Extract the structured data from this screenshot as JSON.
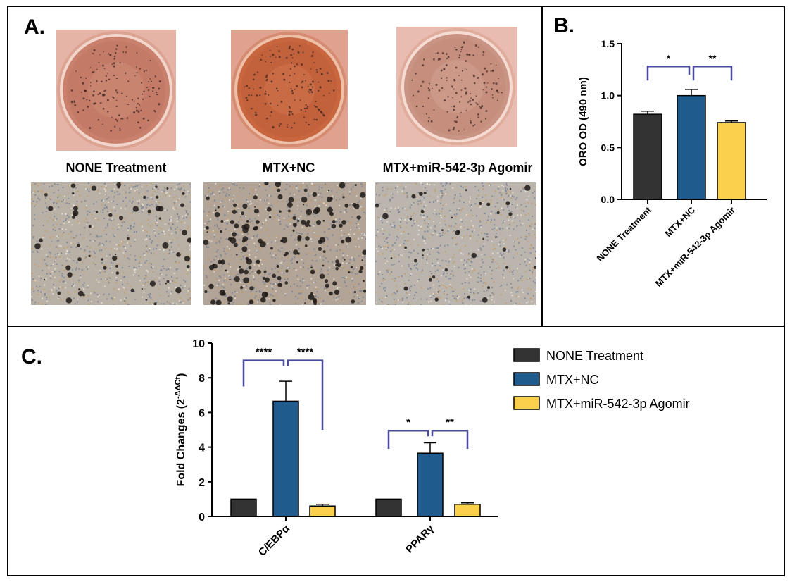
{
  "panels": {
    "a": {
      "letter": "A.",
      "labels": [
        "NONE Treatment",
        "MTX+NC",
        "MTX+miR-542-3p Agomir"
      ]
    },
    "b": {
      "letter": "B."
    },
    "c": {
      "letter": "C."
    }
  },
  "colors": {
    "none": "#333333",
    "nc": "#1f5b8c",
    "agomir": "#fbd04c",
    "bracket": "#4a4a9c",
    "plate_rim": "#e9b3a0",
    "well_fill": "#c8765c",
    "micro_bg": "#b8b0a4"
  },
  "chart_data": [
    {
      "type": "bar",
      "panel": "B",
      "categories": [
        "NONE Treatment",
        "MTX+NC",
        "MTX+miR-542-3p Agomir"
      ],
      "values": [
        0.82,
        1.0,
        0.74
      ],
      "errors": [
        0.03,
        0.06,
        0.015
      ],
      "ylabel": "ORO OD (490 nm)",
      "ylim": [
        0,
        1.5
      ],
      "yticks": [
        "0.0",
        "0.5",
        "1.0",
        "1.5"
      ],
      "grid": false,
      "significance": [
        {
          "from": 0,
          "to": 1,
          "label": "*"
        },
        {
          "from": 1,
          "to": 2,
          "label": "**"
        }
      ]
    },
    {
      "type": "bar",
      "panel": "C",
      "categories": [
        "C/EBPα",
        "PPARγ"
      ],
      "series": [
        {
          "name": "NONE Treatment",
          "values": [
            1.0,
            1.0
          ],
          "errors": [
            0,
            0
          ]
        },
        {
          "name": "MTX+NC",
          "values": [
            6.65,
            3.65
          ],
          "errors": [
            1.15,
            0.6
          ]
        },
        {
          "name": "MTX+miR-542-3p Agomir",
          "values": [
            0.6,
            0.7
          ],
          "errors": [
            0.1,
            0.08
          ]
        }
      ],
      "ylabel": "Fold Changes (2",
      "ylabel_sup": "-ΔΔCt",
      "ylabel_close": ")",
      "ylim": [
        0,
        10
      ],
      "yticks": [
        "0",
        "2",
        "4",
        "6",
        "8",
        "10"
      ],
      "grid": false,
      "legend_position": "right",
      "significance": [
        {
          "category": 0,
          "from": 0,
          "to": 1,
          "label": "****"
        },
        {
          "category": 0,
          "from": 1,
          "to": 2,
          "label": "****"
        },
        {
          "category": 1,
          "from": 0,
          "to": 1,
          "label": "*"
        },
        {
          "category": 1,
          "from": 1,
          "to": 2,
          "label": "**"
        }
      ]
    }
  ]
}
